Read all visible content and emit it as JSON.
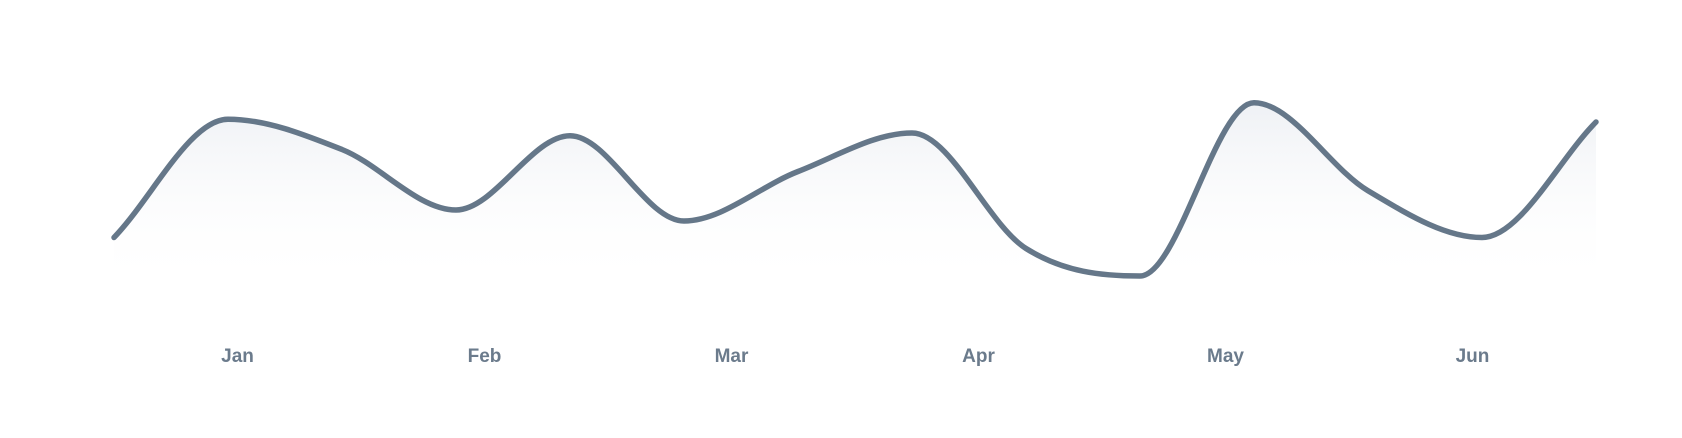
{
  "chart_data": {
    "type": "area",
    "title": "",
    "xlabel": "",
    "ylabel": "",
    "x_ticks": [
      "Jan",
      "Feb",
      "Mar",
      "Apr",
      "May",
      "Jun"
    ],
    "grid": false,
    "legend": "none",
    "series": [
      {
        "values": [
          30,
          73,
          62,
          40,
          67,
          36,
          54,
          68,
          26,
          16,
          79,
          47,
          30,
          72
        ]
      }
    ],
    "ylim": [
      0,
      100
    ],
    "colors": {
      "line": "#657789",
      "tick_label": "#6b7b8c",
      "fill_top": "#e9ecf1",
      "fill_bottom": "#ffffff"
    }
  }
}
